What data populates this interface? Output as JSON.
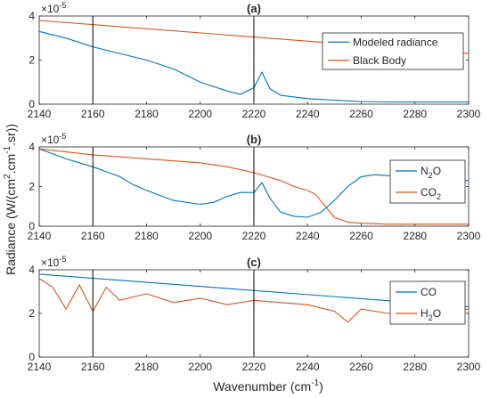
{
  "chart_data": [
    {
      "type": "line",
      "panel": "(a)",
      "title": "(a)",
      "xlim": [
        2140,
        2300
      ],
      "ylim": [
        0,
        4
      ],
      "x_ticks": [
        2140,
        2160,
        2180,
        2200,
        2220,
        2240,
        2260,
        2280,
        2300
      ],
      "y_ticks": [
        0,
        2,
        4
      ],
      "y_exponent_label": "×10",
      "y_exponent": "-5",
      "vlines": [
        2160,
        2220
      ],
      "legend_position": "top-right",
      "series": [
        {
          "name": "Modeled radiance",
          "color": "#0072BD",
          "x": [
            2140,
            2150,
            2160,
            2170,
            2180,
            2190,
            2200,
            2210,
            2215,
            2220,
            2223,
            2226,
            2230,
            2240,
            2250,
            2260,
            2270,
            2280,
            2290,
            2300
          ],
          "y": [
            3.3,
            3.0,
            2.6,
            2.3,
            2.0,
            1.6,
            1.0,
            0.6,
            0.45,
            0.75,
            1.45,
            0.7,
            0.4,
            0.25,
            0.18,
            0.12,
            0.1,
            0.1,
            0.1,
            0.1
          ]
        },
        {
          "name": "Black Body",
          "color": "#D95319",
          "x": [
            2140,
            2300
          ],
          "y": [
            3.8,
            2.3
          ]
        }
      ]
    },
    {
      "type": "line",
      "panel": "(b)",
      "title": "(b)",
      "xlim": [
        2140,
        2300
      ],
      "ylim": [
        0,
        4
      ],
      "x_ticks": [
        2140,
        2160,
        2180,
        2200,
        2220,
        2240,
        2260,
        2280,
        2300
      ],
      "y_ticks": [
        0,
        2,
        4
      ],
      "y_exponent_label": "×10",
      "y_exponent": "-5",
      "vlines": [
        2160,
        2220
      ],
      "legend_position": "right",
      "series": [
        {
          "name": "N2O",
          "label_base": "N",
          "label_sub": "2",
          "label_tail": "O",
          "color": "#0072BD",
          "x": [
            2140,
            2150,
            2160,
            2170,
            2175,
            2180,
            2190,
            2200,
            2205,
            2210,
            2215,
            2220,
            2223,
            2226,
            2230,
            2235,
            2240,
            2245,
            2250,
            2255,
            2260,
            2265,
            2270,
            2280,
            2290,
            2300
          ],
          "y": [
            3.9,
            3.4,
            3.0,
            2.5,
            2.1,
            1.8,
            1.3,
            1.1,
            1.2,
            1.5,
            1.7,
            1.7,
            2.2,
            1.4,
            0.7,
            0.5,
            0.45,
            0.7,
            1.3,
            2.0,
            2.5,
            2.6,
            2.55,
            2.5,
            2.4,
            2.3
          ]
        },
        {
          "name": "CO2",
          "label_base": "CO",
          "label_sub": "2",
          "label_tail": "",
          "color": "#D95319",
          "x": [
            2140,
            2160,
            2180,
            2200,
            2210,
            2220,
            2225,
            2230,
            2235,
            2240,
            2243,
            2246,
            2250,
            2255,
            2260,
            2270,
            2280,
            2290,
            2300
          ],
          "y": [
            3.9,
            3.6,
            3.4,
            3.2,
            3.0,
            2.7,
            2.5,
            2.3,
            2.0,
            1.8,
            1.6,
            1.1,
            0.45,
            0.2,
            0.15,
            0.1,
            0.1,
            0.1,
            0.1
          ]
        }
      ]
    },
    {
      "type": "line",
      "panel": "(c)",
      "title": "(c)",
      "xlim": [
        2140,
        2300
      ],
      "ylim": [
        0,
        4
      ],
      "x_ticks": [
        2140,
        2160,
        2180,
        2200,
        2220,
        2240,
        2260,
        2280,
        2300
      ],
      "y_ticks": [
        0,
        2,
        4
      ],
      "y_exponent_label": "×10",
      "y_exponent": "-5",
      "vlines": [
        2160,
        2220
      ],
      "legend_position": "right",
      "series": [
        {
          "name": "CO",
          "label_base": "CO",
          "label_sub": "",
          "label_tail": "",
          "color": "#0072BD",
          "x": [
            2140,
            2300
          ],
          "y": [
            3.8,
            2.3
          ]
        },
        {
          "name": "H2O",
          "label_base": "H",
          "label_sub": "2",
          "label_tail": "O",
          "color": "#D95319",
          "x": [
            2140,
            2145,
            2150,
            2155,
            2160,
            2165,
            2170,
            2180,
            2190,
            2200,
            2210,
            2220,
            2230,
            2240,
            2250,
            2255,
            2260,
            2270,
            2280,
            2290,
            2300
          ],
          "y": [
            3.6,
            3.2,
            2.2,
            3.3,
            2.1,
            3.2,
            2.6,
            2.9,
            2.5,
            2.7,
            2.4,
            2.6,
            2.5,
            2.4,
            2.1,
            1.6,
            2.2,
            2.0,
            2.2,
            2.1,
            2.2
          ]
        }
      ]
    }
  ],
  "shared": {
    "xlabel_main": "Wavenumber (cm",
    "xlabel_exp": "-1",
    "xlabel_close": ")",
    "ylabel_part1": "Radiance (W/(cm",
    "ylabel_sup1": "2",
    "ylabel_part2": ".cm",
    "ylabel_sup2": "-1",
    "ylabel_part3": ".sr))"
  }
}
